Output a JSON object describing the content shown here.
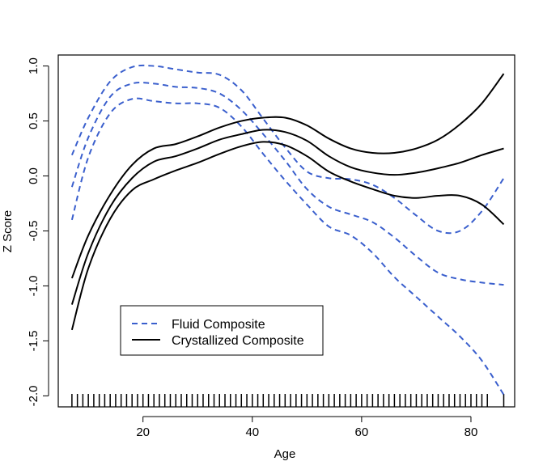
{
  "chart_data": {
    "type": "line",
    "xlabel": "Age",
    "ylabel": "Z Score",
    "xlim": [
      4.5,
      88
    ],
    "ylim": [
      -2.1,
      1.1
    ],
    "x_ticks": [
      20,
      40,
      60,
      80
    ],
    "y_ticks": [
      -2.0,
      -1.5,
      -1.0,
      -0.5,
      0.0,
      0.5,
      1.0
    ],
    "x_tick_labels": [
      "20",
      "40",
      "60",
      "80"
    ],
    "y_tick_labels": [
      "-2.0",
      "-1.5",
      "-1.0",
      "-0.5",
      "0.0",
      "0.5",
      "1.0"
    ],
    "grid": false,
    "legend_position": "lower-left",
    "series": [
      {
        "name": "Fluid Composite",
        "role": "estimate",
        "legend": true,
        "color": "#3a5fcd",
        "dash": true,
        "x": [
          7,
          10,
          14,
          18,
          22,
          26,
          30,
          34,
          38,
          42,
          46,
          50,
          54,
          58,
          62,
          66,
          70,
          74,
          78,
          82,
          86
        ],
        "y": [
          -0.1,
          0.35,
          0.72,
          0.84,
          0.84,
          0.81,
          0.8,
          0.75,
          0.6,
          0.38,
          0.14,
          -0.12,
          -0.28,
          -0.35,
          -0.42,
          -0.56,
          -0.73,
          -0.88,
          -0.94,
          -0.97,
          -0.99
        ]
      },
      {
        "name": "Fluid Composite upper",
        "role": "upper",
        "legend": false,
        "color": "#3a5fcd",
        "dash": true,
        "x": [
          7,
          10,
          14,
          18,
          22,
          26,
          30,
          34,
          38,
          42,
          46,
          50,
          54,
          58,
          62,
          66,
          70,
          74,
          78,
          82,
          86
        ],
        "y": [
          0.19,
          0.53,
          0.86,
          0.99,
          1.0,
          0.97,
          0.94,
          0.92,
          0.78,
          0.52,
          0.26,
          0.04,
          -0.02,
          -0.03,
          -0.08,
          -0.2,
          -0.36,
          -0.5,
          -0.5,
          -0.32,
          -0.02
        ]
      },
      {
        "name": "Fluid Composite lower",
        "role": "lower",
        "legend": false,
        "color": "#3a5fcd",
        "dash": true,
        "x": [
          7,
          10,
          14,
          18,
          22,
          26,
          30,
          34,
          38,
          42,
          46,
          50,
          54,
          58,
          62,
          66,
          70,
          74,
          78,
          82,
          86
        ],
        "y": [
          -0.4,
          0.17,
          0.57,
          0.7,
          0.68,
          0.66,
          0.66,
          0.62,
          0.45,
          0.2,
          -0.04,
          -0.26,
          -0.46,
          -0.54,
          -0.7,
          -0.92,
          -1.1,
          -1.28,
          -1.46,
          -1.68,
          -1.99
        ]
      },
      {
        "name": "Crystallized Composite",
        "role": "estimate",
        "legend": true,
        "color": "#000000",
        "dash": false,
        "x": [
          7,
          10,
          14,
          18,
          22,
          26,
          30,
          34,
          38,
          42,
          46,
          50,
          54,
          58,
          62,
          66,
          70,
          74,
          78,
          82,
          86
        ],
        "y": [
          -1.17,
          -0.7,
          -0.28,
          -0.02,
          0.13,
          0.18,
          0.25,
          0.33,
          0.38,
          0.42,
          0.4,
          0.32,
          0.18,
          0.08,
          0.03,
          0.01,
          0.03,
          0.07,
          0.12,
          0.19,
          0.25
        ]
      },
      {
        "name": "Crystallized Composite upper",
        "role": "upper",
        "legend": false,
        "color": "#000000",
        "dash": false,
        "x": [
          7,
          10,
          14,
          18,
          22,
          26,
          30,
          34,
          38,
          42,
          46,
          50,
          54,
          58,
          62,
          66,
          70,
          74,
          78,
          82,
          86
        ],
        "y": [
          -0.93,
          -0.54,
          -0.17,
          0.1,
          0.25,
          0.29,
          0.36,
          0.44,
          0.5,
          0.53,
          0.53,
          0.46,
          0.34,
          0.25,
          0.21,
          0.21,
          0.25,
          0.33,
          0.47,
          0.66,
          0.93
        ]
      },
      {
        "name": "Crystallized Composite lower",
        "role": "lower",
        "legend": false,
        "color": "#000000",
        "dash": false,
        "x": [
          7,
          10,
          14,
          18,
          22,
          26,
          30,
          34,
          38,
          42,
          46,
          50,
          54,
          58,
          62,
          66,
          70,
          74,
          78,
          82,
          86
        ],
        "y": [
          -1.4,
          -0.84,
          -0.39,
          -0.13,
          -0.03,
          0.05,
          0.12,
          0.2,
          0.27,
          0.31,
          0.28,
          0.18,
          0.04,
          -0.05,
          -0.12,
          -0.18,
          -0.2,
          -0.18,
          -0.18,
          -0.26,
          -0.44
        ]
      }
    ],
    "rug": [
      7,
      8,
      9,
      10,
      11,
      12,
      13,
      14,
      15,
      16,
      17,
      18,
      19,
      20,
      21,
      22,
      23,
      24,
      25,
      26,
      27,
      28,
      29,
      30,
      31,
      32,
      33,
      34,
      35,
      36,
      37,
      38,
      39,
      40,
      41,
      42,
      43,
      44,
      45,
      46,
      47,
      48,
      49,
      50,
      51,
      52,
      53,
      54,
      55,
      56,
      57,
      58,
      59,
      60,
      61,
      62,
      63,
      64,
      65,
      66,
      67,
      68,
      69,
      70,
      71,
      72,
      73,
      74,
      75,
      76,
      77,
      78,
      79,
      80,
      81,
      82,
      83,
      86
    ]
  }
}
